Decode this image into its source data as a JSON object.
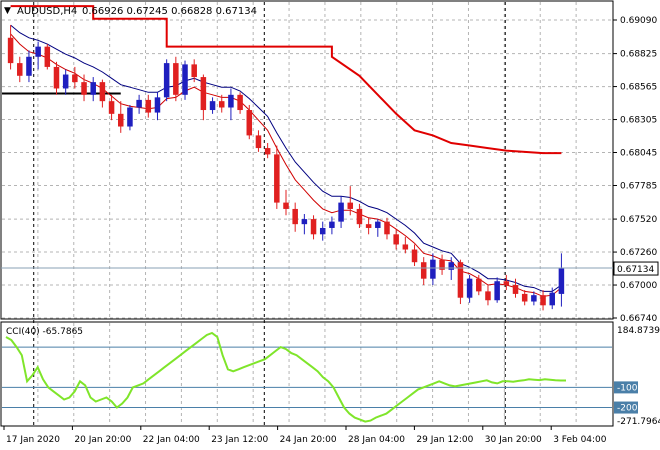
{
  "header": {
    "symbol": "AUDUSD,H4",
    "ohlc": "0.66926 0.67245 0.66828 0.67134"
  },
  "price_axis": {
    "ticks": [
      "0.69090",
      "0.68825",
      "0.68565",
      "0.68305",
      "0.68045",
      "0.67785",
      "0.67520",
      "0.67260",
      "0.67000",
      "0.66740"
    ],
    "current_price": "0.67134"
  },
  "indicator": {
    "label": "CCI(40) -65.7865",
    "ticks": [
      "184.8739",
      "-100",
      "-200",
      "-271.7964"
    ],
    "ref_levels": [
      "100",
      "-100",
      "-200"
    ]
  },
  "time_axis": {
    "labels": [
      "17 Jan 2020",
      "20 Jan 20:00",
      "22 Jan 04:00",
      "23 Jan 12:00",
      "24 Jan 20:00",
      "28 Jan 04:00",
      "29 Jan 12:00",
      "30 Jan 20:00",
      "3 Feb 04:00"
    ]
  },
  "colors": {
    "bull": "#1f1fbf",
    "bear": "#e02020",
    "step_line": "#e00000",
    "ma_red": "#d00000",
    "ma_navy": "#000080",
    "cci": "#7fe52a",
    "grid": "#b4b4b4",
    "ref_line": "#4a7fa8",
    "price_tag_bg": "#ffffff"
  },
  "chart_data": {
    "type": "candlestick",
    "price_range": [
      0.6674,
      0.6909
    ],
    "candles": [
      [
        0.6895,
        0.6905,
        0.687,
        0.6875
      ],
      [
        0.6875,
        0.688,
        0.686,
        0.6865
      ],
      [
        0.6865,
        0.6885,
        0.686,
        0.688
      ],
      [
        0.688,
        0.6892,
        0.687,
        0.6888
      ],
      [
        0.6888,
        0.689,
        0.687,
        0.6872
      ],
      [
        0.6872,
        0.6876,
        0.685,
        0.6855
      ],
      [
        0.6855,
        0.687,
        0.685,
        0.6866
      ],
      [
        0.6866,
        0.6872,
        0.6855,
        0.686
      ],
      [
        0.686,
        0.6866,
        0.6845,
        0.685
      ],
      [
        0.685,
        0.6864,
        0.6845,
        0.686
      ],
      [
        0.686,
        0.6862,
        0.684,
        0.6845
      ],
      [
        0.6845,
        0.685,
        0.683,
        0.6835
      ],
      [
        0.6835,
        0.6845,
        0.682,
        0.6825
      ],
      [
        0.6825,
        0.6842,
        0.6822,
        0.684
      ],
      [
        0.684,
        0.685,
        0.6835,
        0.6846
      ],
      [
        0.6846,
        0.685,
        0.6832,
        0.6836
      ],
      [
        0.6836,
        0.6852,
        0.683,
        0.6848
      ],
      [
        0.6848,
        0.6878,
        0.6845,
        0.6875
      ],
      [
        0.6875,
        0.688,
        0.6845,
        0.685
      ],
      [
        0.685,
        0.6877,
        0.6846,
        0.6874
      ],
      [
        0.6874,
        0.6878,
        0.686,
        0.6864
      ],
      [
        0.6864,
        0.6866,
        0.683,
        0.6838
      ],
      [
        0.6838,
        0.6848,
        0.6835,
        0.6845
      ],
      [
        0.6845,
        0.685,
        0.6836,
        0.684
      ],
      [
        0.684,
        0.6855,
        0.683,
        0.685
      ],
      [
        0.685,
        0.6852,
        0.6835,
        0.6838
      ],
      [
        0.6838,
        0.6842,
        0.6815,
        0.6818
      ],
      [
        0.6818,
        0.6822,
        0.6805,
        0.6808
      ],
      [
        0.6808,
        0.6812,
        0.68,
        0.6803
      ],
      [
        0.6803,
        0.681,
        0.676,
        0.6765
      ],
      [
        0.6765,
        0.6775,
        0.6755,
        0.676
      ],
      [
        0.676,
        0.6765,
        0.6742,
        0.6748
      ],
      [
        0.6748,
        0.6756,
        0.674,
        0.6752
      ],
      [
        0.6752,
        0.6755,
        0.6736,
        0.674
      ],
      [
        0.674,
        0.675,
        0.6735,
        0.6745
      ],
      [
        0.6745,
        0.6754,
        0.674,
        0.675
      ],
      [
        0.675,
        0.677,
        0.6745,
        0.6765
      ],
      [
        0.6765,
        0.6778,
        0.6755,
        0.676
      ],
      [
        0.676,
        0.6764,
        0.6745,
        0.6748
      ],
      [
        0.6748,
        0.6753,
        0.674,
        0.6745
      ],
      [
        0.6745,
        0.6752,
        0.6738,
        0.675
      ],
      [
        0.675,
        0.6753,
        0.6736,
        0.674
      ],
      [
        0.674,
        0.6744,
        0.6728,
        0.6732
      ],
      [
        0.6732,
        0.6738,
        0.6725,
        0.6728
      ],
      [
        0.6728,
        0.6732,
        0.6715,
        0.6718
      ],
      [
        0.6718,
        0.6722,
        0.67,
        0.6705
      ],
      [
        0.6705,
        0.6725,
        0.67,
        0.672
      ],
      [
        0.672,
        0.6724,
        0.6708,
        0.6712
      ],
      [
        0.6712,
        0.6722,
        0.6704,
        0.6718
      ],
      [
        0.6718,
        0.672,
        0.6685,
        0.669
      ],
      [
        0.669,
        0.6708,
        0.6686,
        0.6705
      ],
      [
        0.6705,
        0.6708,
        0.6692,
        0.6695
      ],
      [
        0.6695,
        0.67,
        0.6684,
        0.6688
      ],
      [
        0.6688,
        0.6706,
        0.6686,
        0.6703
      ],
      [
        0.6703,
        0.6708,
        0.6696,
        0.67
      ],
      [
        0.67,
        0.6705,
        0.669,
        0.6693
      ],
      [
        0.6693,
        0.6696,
        0.6684,
        0.6687
      ],
      [
        0.6687,
        0.6695,
        0.6684,
        0.6692
      ],
      [
        0.6692,
        0.6696,
        0.668,
        0.6684
      ],
      [
        0.6684,
        0.6698,
        0.6681,
        0.6694
      ],
      [
        0.6693,
        0.6725,
        0.6683,
        0.6713
      ]
    ],
    "moving_average_red": [
      0.6898,
      0.689,
      0.6884,
      0.6882,
      0.6879,
      0.6874,
      0.687,
      0.6867,
      0.6862,
      0.6859,
      0.6855,
      0.6849,
      0.6843,
      0.6841,
      0.684,
      0.6839,
      0.684,
      0.6847,
      0.6848,
      0.6853,
      0.6856,
      0.6852,
      0.685,
      0.6848,
      0.6848,
      0.6845,
      0.6838,
      0.683,
      0.6822,
      0.6808,
      0.6795,
      0.6783,
      0.6775,
      0.6767,
      0.676,
      0.6757,
      0.6759,
      0.6759,
      0.6756,
      0.6753,
      0.6752,
      0.6749,
      0.6744,
      0.6739,
      0.6733,
      0.6725,
      0.6723,
      0.672,
      0.6719,
      0.6711,
      0.6709,
      0.6705,
      0.67,
      0.6701,
      0.67,
      0.6698,
      0.6695,
      0.6694,
      0.6691,
      0.6692,
      0.6698
    ],
    "moving_average_navy": [
      0.6905,
      0.6899,
      0.6895,
      0.6893,
      0.689,
      0.6886,
      0.6882,
      0.6879,
      0.6875,
      0.6872,
      0.6868,
      0.6863,
      0.6858,
      0.6856,
      0.6854,
      0.6852,
      0.6852,
      0.6856,
      0.6857,
      0.6861,
      0.6863,
      0.686,
      0.6858,
      0.6856,
      0.6856,
      0.6853,
      0.6847,
      0.684,
      0.6833,
      0.682,
      0.6808,
      0.6797,
      0.6789,
      0.6781,
      0.6774,
      0.677,
      0.677,
      0.6769,
      0.6766,
      0.6762,
      0.676,
      0.6757,
      0.6752,
      0.6747,
      0.6741,
      0.6733,
      0.673,
      0.6727,
      0.6725,
      0.6717,
      0.6714,
      0.671,
      0.6705,
      0.6705,
      0.6704,
      0.6702,
      0.6699,
      0.6698,
      0.6695,
      0.6695,
      0.67
    ],
    "step_resistance": [
      [
        0,
        0.692
      ],
      [
        9,
        0.692
      ],
      [
        9,
        0.691
      ],
      [
        17,
        0.691
      ],
      [
        17,
        0.6888
      ],
      [
        35,
        0.6888
      ],
      [
        35,
        0.688
      ],
      [
        38,
        0.6865
      ],
      [
        40,
        0.685
      ],
      [
        42,
        0.6835
      ],
      [
        44,
        0.6822
      ],
      [
        46,
        0.6818
      ],
      [
        48,
        0.6812
      ],
      [
        50,
        0.681
      ],
      [
        52,
        0.6808
      ],
      [
        54,
        0.6806
      ],
      [
        56,
        0.6805
      ],
      [
        58,
        0.6804
      ],
      [
        60,
        0.6804
      ]
    ],
    "step_resistance_x": "candle index scaled to 60 steps",
    "support_line": {
      "value": 0.6851,
      "from_candle": 0,
      "to_candle": 12
    },
    "cci_range": [
      -271.7964,
      184.8739
    ],
    "cci": [
      150,
      135,
      100,
      60,
      -70,
      -40,
      0,
      -60,
      -100,
      -120,
      -140,
      -160,
      -150,
      -120,
      -70,
      -90,
      -150,
      -170,
      -160,
      -150,
      -170,
      -200,
      -180,
      -150,
      -100,
      -90,
      -80,
      -60,
      -40,
      -20,
      0,
      20,
      40,
      60,
      80,
      100,
      120,
      140,
      160,
      170,
      150,
      60,
      -10,
      -20,
      -10,
      0,
      10,
      20,
      30,
      40,
      60,
      80,
      100,
      90,
      70,
      60,
      40,
      20,
      0,
      -20,
      -50,
      -70,
      -100,
      -150,
      -200,
      -230,
      -250,
      -260,
      -270,
      -265,
      -250,
      -240,
      -230,
      -210,
      -190,
      -170,
      -150,
      -130,
      -110,
      -100,
      -90,
      -80,
      -70,
      -80,
      -90,
      -95,
      -90,
      -85,
      -80,
      -75,
      -70,
      -65,
      -75,
      -80,
      -70,
      -70,
      -72,
      -68,
      -65,
      -60,
      -62,
      -64,
      -60,
      -62,
      -65,
      -66,
      -65.7865
    ],
    "xlabel": "",
    "ylabel": ""
  }
}
